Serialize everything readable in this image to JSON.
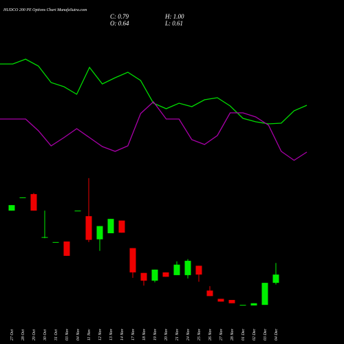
{
  "chart_data": [
    {
      "type": "line",
      "ylim": [
        0,
        250
      ],
      "series": [
        {
          "color": "#00dd00",
          "values": [
            157,
            157,
            164,
            154,
            130,
            124,
            113,
            152,
            128,
            137,
            145,
            133,
            100,
            92,
            100,
            95,
            105,
            108,
            96,
            78,
            73,
            70,
            71,
            89,
            97
          ]
        },
        {
          "color": "#aa00aa",
          "values": [
            77,
            77,
            77,
            60,
            38,
            50,
            63,
            50,
            37,
            30,
            38,
            85,
            102,
            77,
            77,
            47,
            40,
            53,
            86,
            86,
            80,
            68,
            30,
            17,
            29
          ]
        }
      ]
    },
    {
      "type": "candlestick",
      "title": "HUDCO 200 PE Options Chart MunafaSutra.com",
      "ohlc_labels": [
        "C: 0.79",
        "H: 1.00",
        "O: 0.64",
        "L: 0.61"
      ],
      "categories": [
        "27 Oct",
        "28 Oct",
        "29 Oct",
        "30 Oct",
        "31 Oct",
        "03 Nov",
        "04 Nov",
        "11 Nov",
        "12 Nov",
        "13 Nov",
        "14 Nov",
        "17 Nov",
        "18 Nov",
        "19 Nov",
        "20 Nov",
        "21 Nov",
        "24 Nov",
        "25 Nov",
        "26 Nov",
        "27 Nov",
        "28 Nov",
        "01 Dec",
        "02 Dec",
        "03 Dec",
        "04 Dec"
      ],
      "open": [
        1.95,
        2.18,
        2.25,
        1.47,
        1.38,
        1.39,
        1.95,
        1.85,
        1.43,
        1.54,
        1.77,
        1.27,
        0.82,
        0.68,
        0.83,
        0.78,
        0.78,
        0.95,
        0.5,
        0.35,
        0.33,
        0.24,
        0.23,
        0.24,
        0.64
      ],
      "high": [
        2.05,
        2.19,
        2.27,
        1.95,
        1.38,
        1.39,
        1.95,
        2.54,
        1.67,
        1.8,
        1.77,
        1.27,
        0.82,
        0.88,
        0.83,
        1.03,
        1.07,
        0.95,
        0.58,
        0.35,
        0.33,
        0.24,
        0.27,
        0.64,
        1.0
      ],
      "low": [
        1.95,
        2.18,
        1.95,
        1.45,
        1.38,
        1.13,
        1.95,
        1.38,
        1.22,
        1.54,
        1.55,
        0.73,
        0.59,
        0.65,
        0.75,
        0.78,
        0.72,
        0.66,
        0.4,
        0.3,
        0.27,
        0.24,
        0.23,
        0.24,
        0.61
      ],
      "close": [
        2.05,
        2.19,
        1.95,
        1.47,
        1.38,
        1.13,
        1.95,
        1.42,
        1.67,
        1.8,
        1.55,
        0.83,
        0.68,
        0.88,
        0.75,
        0.97,
        1.04,
        0.79,
        0.4,
        0.3,
        0.27,
        0.24,
        0.27,
        0.64,
        0.79
      ],
      "ylim": [
        0.03,
        3.2
      ],
      "up_color": "#00ee00",
      "down_color": "#ee0000"
    }
  ]
}
